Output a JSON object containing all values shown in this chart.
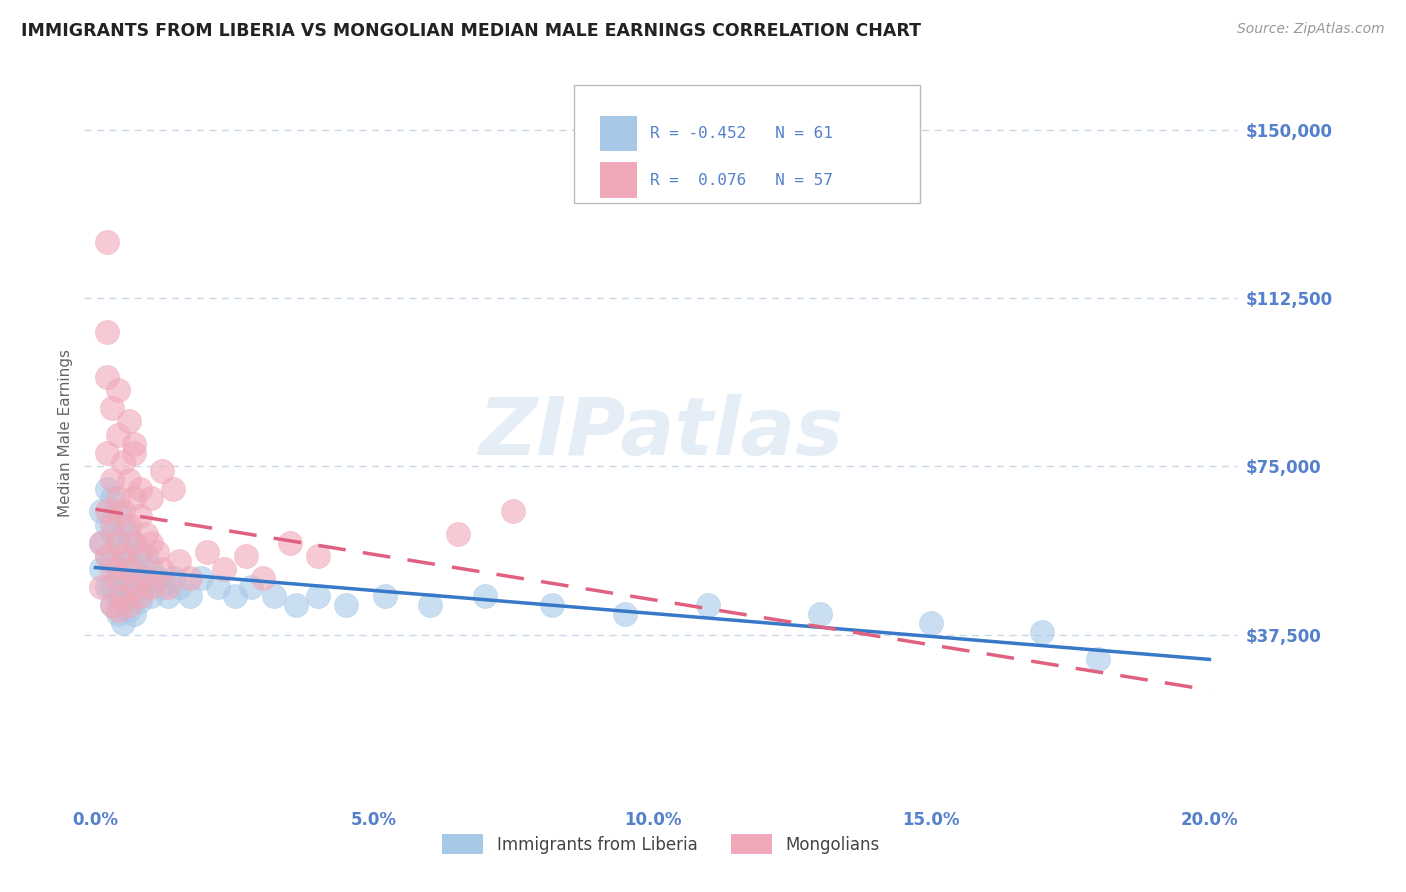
{
  "title": "IMMIGRANTS FROM LIBERIA VS MONGOLIAN MEDIAN MALE EARNINGS CORRELATION CHART",
  "source": "Source: ZipAtlas.com",
  "ylabel": "Median Male Earnings",
  "xlim": [
    -0.002,
    0.205
  ],
  "ylim": [
    0,
    165000
  ],
  "yticks": [
    37500,
    75000,
    112500,
    150000
  ],
  "ytick_labels": [
    "$37,500",
    "$75,000",
    "$112,500",
    "$150,000"
  ],
  "xticks": [
    0.0,
    0.05,
    0.1,
    0.15,
    0.2
  ],
  "xtick_labels": [
    "0.0%",
    "5.0%",
    "10.0%",
    "15.0%",
    "20.0%"
  ],
  "liberia_color": "#a8c8e8",
  "mongolian_color": "#f0a8b8",
  "liberia_line_color": "#3878c8",
  "mongolian_line_color": "#e06080",
  "background_color": "#ffffff",
  "grid_color": "#c8d8e8",
  "watermark": "ZIPatlas",
  "title_color": "#222222",
  "axis_label_color": "#5580cc",
  "legend_label1": "R = -0.452   N = 61",
  "legend_label2": "R =  0.076   N = 57",
  "bottom_legend1": "Immigrants from Liberia",
  "bottom_legend2": "Mongolians",
  "liberia_x": [
    0.001,
    0.001,
    0.001,
    0.002,
    0.002,
    0.002,
    0.002,
    0.003,
    0.003,
    0.003,
    0.003,
    0.003,
    0.004,
    0.004,
    0.004,
    0.004,
    0.004,
    0.005,
    0.005,
    0.005,
    0.005,
    0.005,
    0.006,
    0.006,
    0.006,
    0.006,
    0.007,
    0.007,
    0.007,
    0.007,
    0.008,
    0.008,
    0.008,
    0.009,
    0.009,
    0.01,
    0.01,
    0.011,
    0.012,
    0.013,
    0.014,
    0.015,
    0.017,
    0.019,
    0.022,
    0.025,
    0.028,
    0.032,
    0.036,
    0.04,
    0.045,
    0.052,
    0.06,
    0.07,
    0.082,
    0.095,
    0.11,
    0.13,
    0.15,
    0.17,
    0.18
  ],
  "liberia_y": [
    65000,
    58000,
    52000,
    70000,
    62000,
    55000,
    48000,
    68000,
    60000,
    54000,
    48000,
    44000,
    65000,
    58000,
    52000,
    46000,
    42000,
    62000,
    56000,
    50000,
    45000,
    40000,
    60000,
    54000,
    48000,
    43000,
    58000,
    52000,
    46000,
    42000,
    56000,
    50000,
    45000,
    55000,
    48000,
    52000,
    46000,
    50000,
    48000,
    46000,
    50000,
    48000,
    46000,
    50000,
    48000,
    46000,
    48000,
    46000,
    44000,
    46000,
    44000,
    46000,
    44000,
    46000,
    44000,
    42000,
    44000,
    42000,
    40000,
    38000,
    32000
  ],
  "mongolian_x": [
    0.001,
    0.001,
    0.002,
    0.002,
    0.002,
    0.003,
    0.003,
    0.003,
    0.003,
    0.004,
    0.004,
    0.004,
    0.004,
    0.005,
    0.005,
    0.005,
    0.006,
    0.006,
    0.006,
    0.007,
    0.007,
    0.007,
    0.008,
    0.008,
    0.008,
    0.009,
    0.009,
    0.01,
    0.01,
    0.011,
    0.012,
    0.013,
    0.015,
    0.017,
    0.02,
    0.023,
    0.027,
    0.03,
    0.035,
    0.04,
    0.002,
    0.003,
    0.004,
    0.005,
    0.006,
    0.007,
    0.008,
    0.01,
    0.012,
    0.014,
    0.002,
    0.065,
    0.075,
    0.002,
    0.004,
    0.006,
    0.007
  ],
  "mongolian_y": [
    58000,
    48000,
    78000,
    65000,
    55000,
    72000,
    62000,
    52000,
    44000,
    68000,
    58000,
    50000,
    43000,
    65000,
    55000,
    46000,
    62000,
    52000,
    44000,
    68000,
    58000,
    48000,
    64000,
    55000,
    46000,
    60000,
    50000,
    58000,
    48000,
    56000,
    52000,
    48000,
    54000,
    50000,
    56000,
    52000,
    55000,
    50000,
    58000,
    55000,
    95000,
    88000,
    82000,
    76000,
    72000,
    78000,
    70000,
    68000,
    74000,
    70000,
    125000,
    60000,
    65000,
    105000,
    92000,
    85000,
    80000
  ]
}
